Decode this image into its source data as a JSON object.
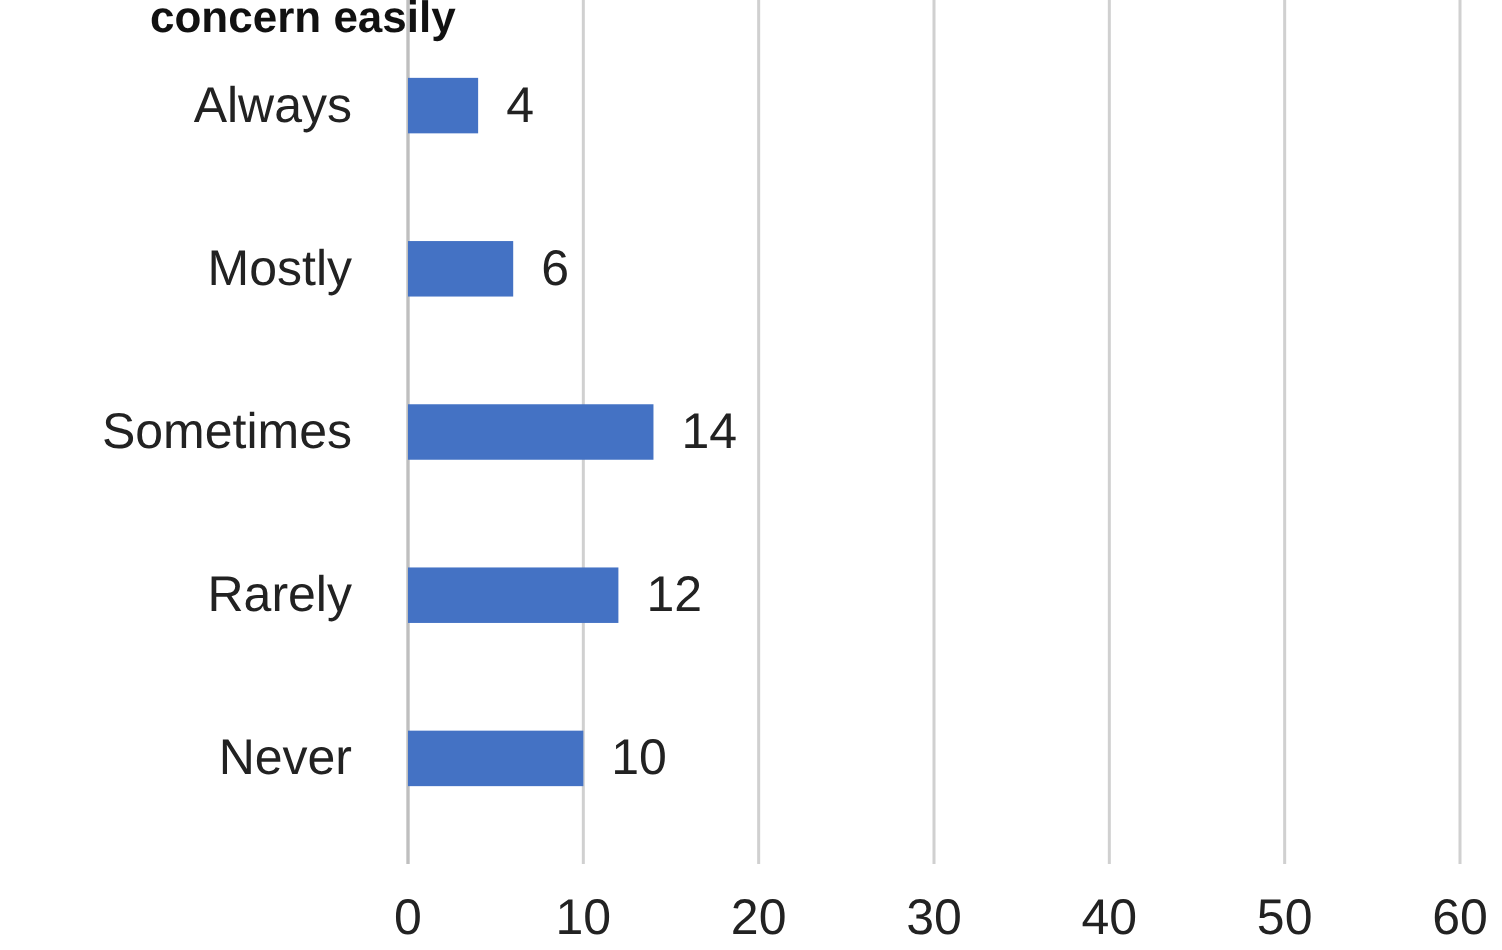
{
  "chart_data": {
    "type": "bar",
    "orientation": "horizontal",
    "title": "concern easily",
    "categories": [
      "Always",
      "Mostly",
      "Sometimes",
      "Rarely",
      "Never"
    ],
    "values": [
      4,
      6,
      14,
      12,
      10
    ],
    "color": "#4472c4",
    "xlim": [
      0,
      60
    ],
    "xticks": [
      0,
      10,
      20,
      30,
      40,
      50,
      60
    ],
    "grid": "x",
    "data_labels": true
  }
}
